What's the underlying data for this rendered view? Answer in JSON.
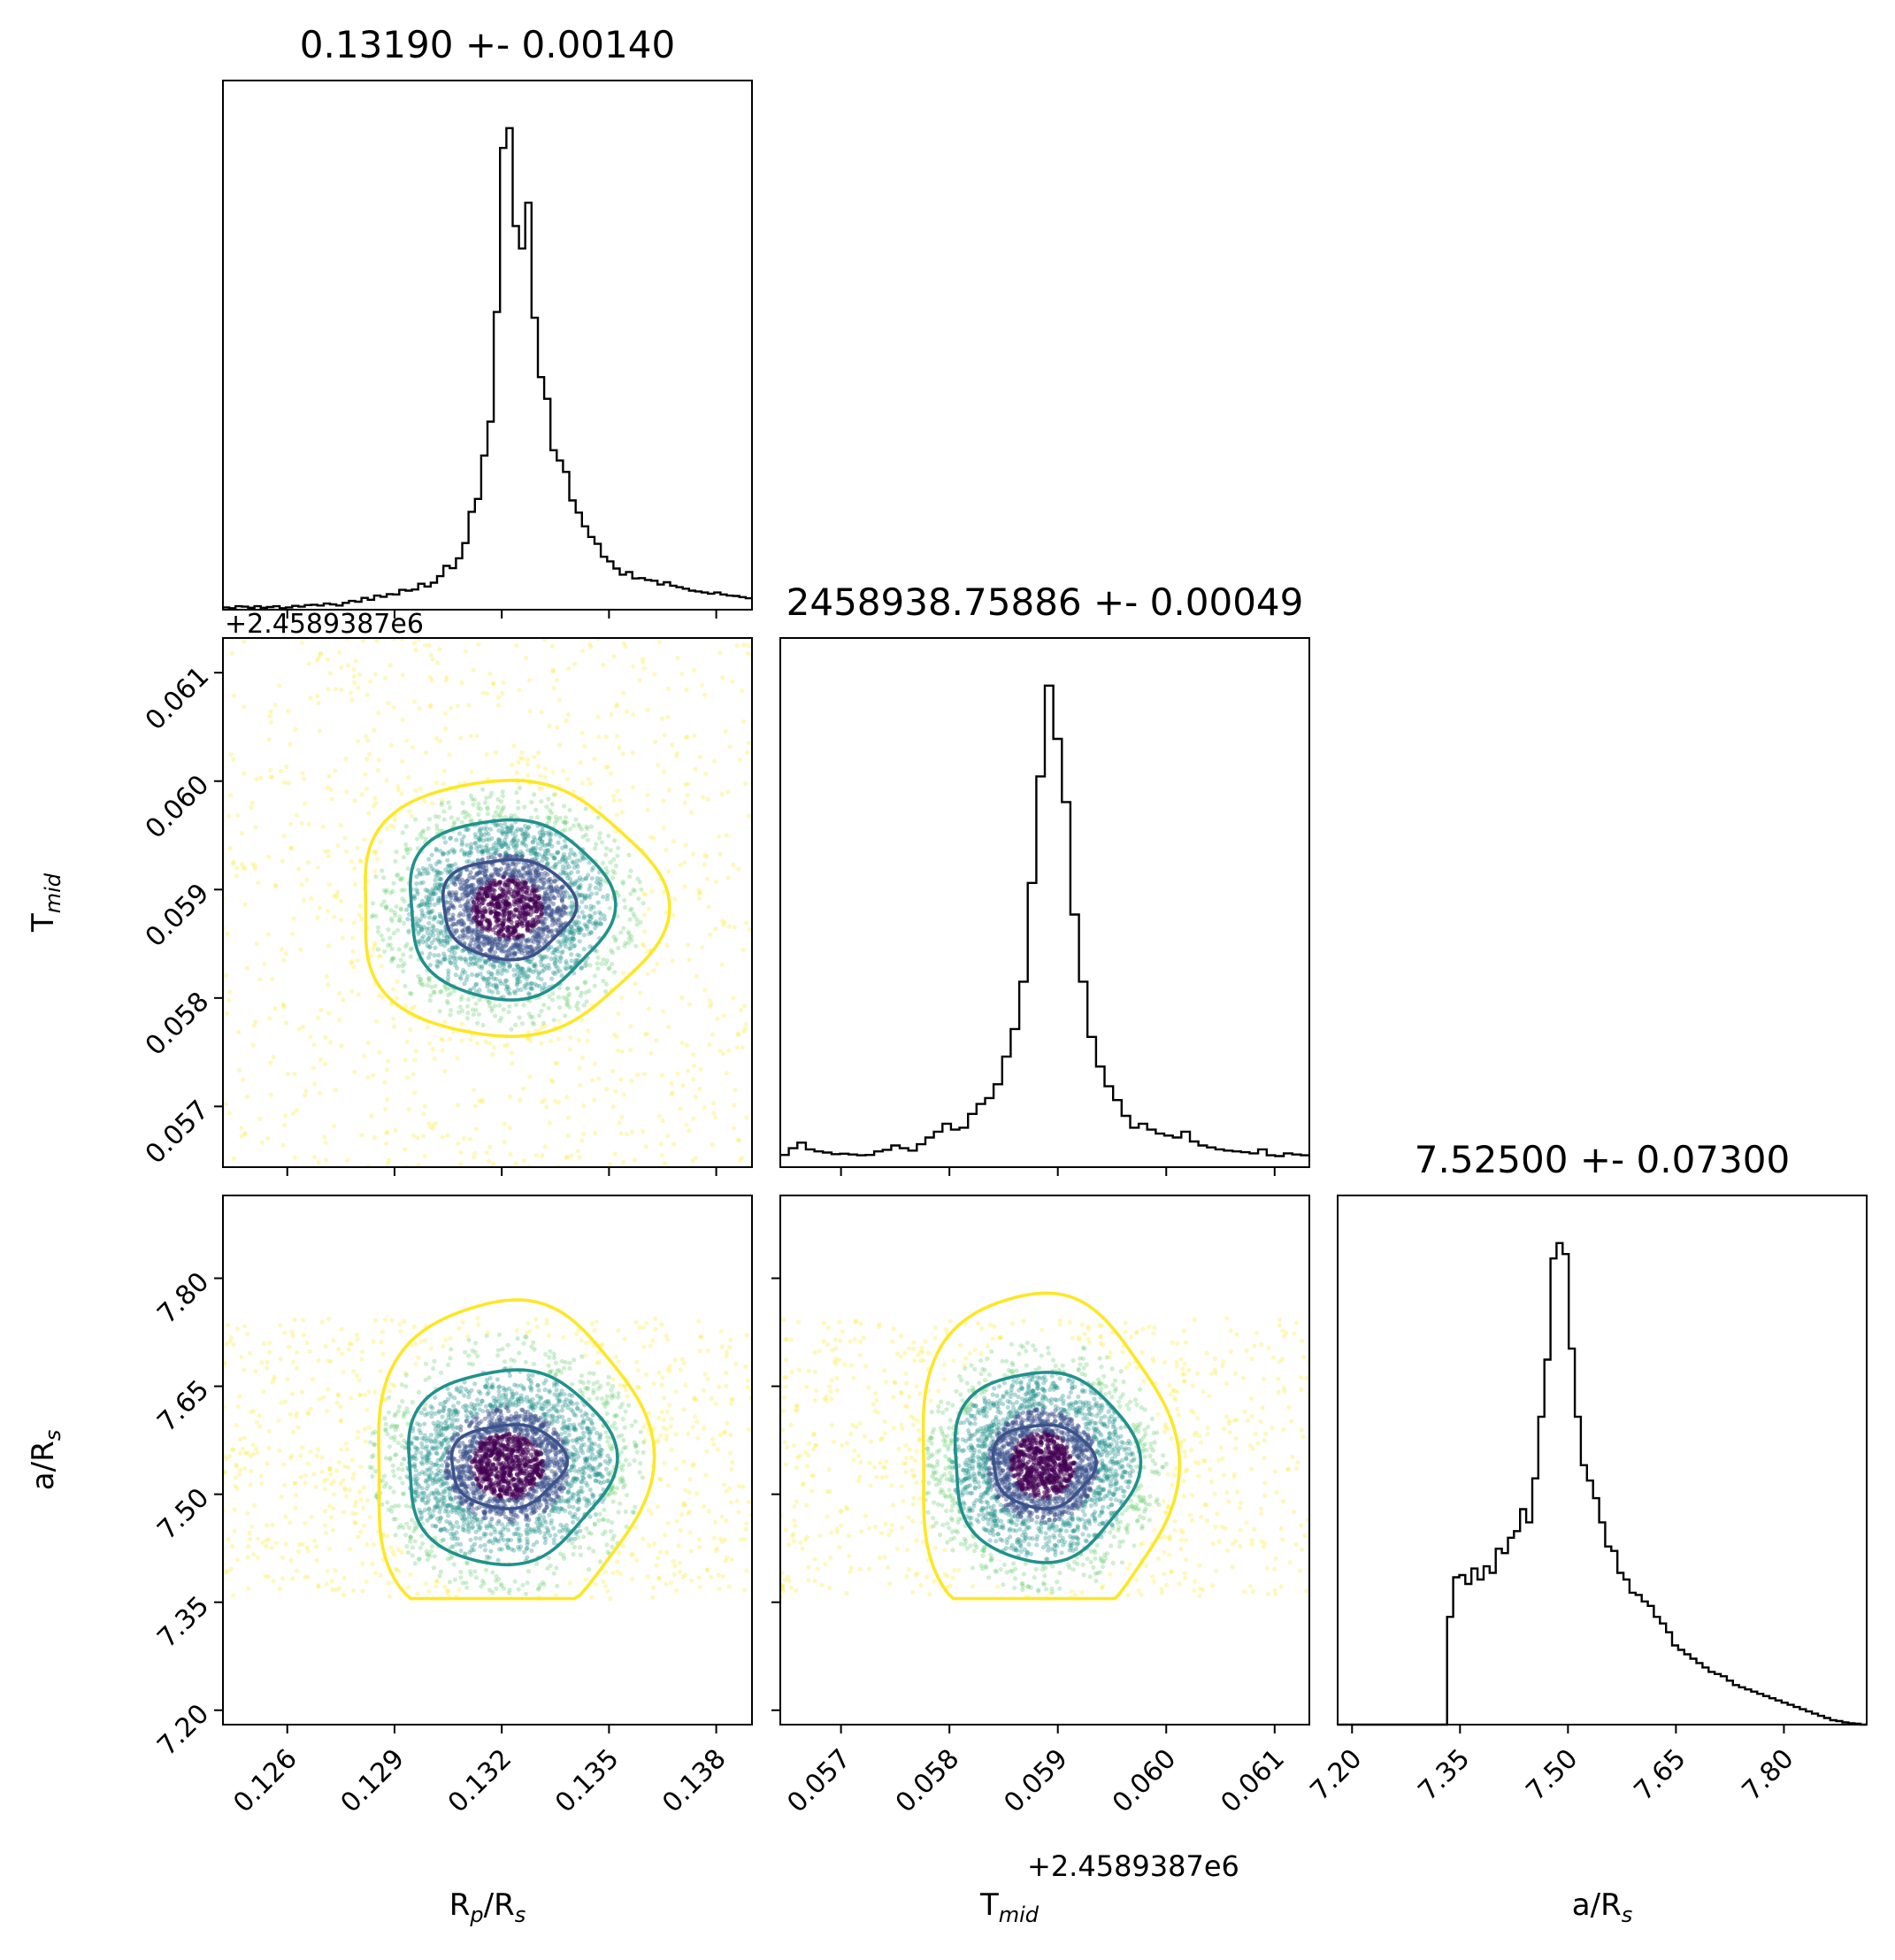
{
  "chart_data": {
    "type": "corner",
    "parameters": [
      {
        "key": "rprs",
        "label_main": "R",
        "label_sub": "p",
        "label_rest": "/R",
        "label_sub2": "s",
        "title": "0.13190 +- 0.00140",
        "range": [
          0.1242,
          0.139
        ],
        "ticks": [
          0.126,
          0.129,
          0.132,
          0.135,
          0.138
        ],
        "tick_labels": [
          "0.126",
          "0.129",
          "0.132",
          "0.135",
          "0.138"
        ],
        "offset_text": ""
      },
      {
        "key": "tmid",
        "label_main": "T",
        "label_sub": "mid",
        "label_rest": "",
        "label_sub2": "",
        "title": "2458938.75886 +- 0.00049",
        "range": [
          0.05644,
          0.06132
        ],
        "ticks": [
          0.057,
          0.058,
          0.059,
          0.06,
          0.061
        ],
        "tick_labels": [
          "0.057",
          "0.058",
          "0.059",
          "0.060",
          "0.061"
        ],
        "offset_text": "+2.4589387e6"
      },
      {
        "key": "ars",
        "label_main": "a/R",
        "label_sub": "s",
        "label_rest": "",
        "label_sub2": "",
        "title": "7.52500 +- 0.07300",
        "range": [
          7.18,
          7.915
        ],
        "ticks": [
          7.2,
          7.35,
          7.5,
          7.65,
          7.8
        ],
        "tick_labels": [
          "7.20",
          "7.35",
          "7.50",
          "7.65",
          "7.80"
        ],
        "offset_text": ""
      }
    ],
    "histograms": {
      "rprs": {
        "bin_range": [
          0.1242,
          0.139
        ],
        "counts": [
          6,
          4,
          9,
          8,
          5,
          9,
          5,
          7,
          9,
          4,
          6,
          10,
          8,
          12,
          13,
          11,
          16,
          14,
          11,
          18,
          23,
          21,
          31,
          26,
          37,
          34,
          41,
          40,
          52,
          50,
          53,
          68,
          61,
          71,
          88,
          115,
          109,
          135,
          175,
          257,
          291,
          405,
          494,
          782,
          1213,
          1265,
          1008,
          949,
          1069,
          767,
          611,
          554,
          419,
          392,
          362,
          287,
          255,
          219,
          191,
          173,
          139,
          127,
          108,
          92,
          99,
          82,
          83,
          78,
          76,
          66,
          72,
          63,
          59,
          55,
          50,
          48,
          45,
          42,
          45,
          40,
          37,
          36,
          33,
          30
        ]
      },
      "tmid": {
        "bin_range": [
          0.05644,
          0.06132
        ],
        "counts": [
          31,
          48,
          62,
          45,
          40,
          37,
          33,
          34,
          32,
          30,
          31,
          40,
          44,
          55,
          48,
          42,
          58,
          75,
          90,
          110,
          95,
          100,
          135,
          160,
          175,
          210,
          280,
          350,
          470,
          720,
          990,
          1220,
          1085,
          925,
          640,
          470,
          330,
          255,
          205,
          170,
          130,
          100,
          110,
          95,
          85,
          80,
          75,
          90,
          65,
          55,
          50,
          45,
          42,
          40,
          38,
          35,
          45,
          30,
          28,
          35,
          32,
          30
        ]
      },
      "ars": {
        "bin_range": [
          7.18,
          7.915
        ],
        "counts": [
          0,
          0,
          0,
          0,
          0,
          0,
          0,
          0,
          0,
          0,
          0,
          0,
          0,
          0,
          0,
          0,
          0,
          0,
          245,
          335,
          340,
          320,
          355,
          330,
          360,
          345,
          400,
          390,
          425,
          440,
          490,
          460,
          560,
          700,
          830,
          1060,
          1095,
          1070,
          855,
          700,
          590,
          555,
          515,
          460,
          405,
          395,
          345,
          330,
          300,
          295,
          280,
          270,
          245,
          230,
          210,
          180,
          170,
          160,
          150,
          140,
          130,
          120,
          115,
          110,
          100,
          90,
          85,
          80,
          75,
          70,
          65,
          60,
          55,
          50,
          45,
          40,
          35,
          30,
          25,
          20,
          15,
          10,
          8,
          5,
          3,
          2,
          0
        ]
      }
    },
    "pairs": [
      {
        "x": "rprs",
        "y": "tmid",
        "center": [
          0.13215,
          0.05883
        ],
        "sigma": [
          0.00155,
          0.00046
        ],
        "corr": 0.0,
        "y_clip": null,
        "contours": [
          {
            "level": 0.5,
            "color": "#3b528b",
            "rx": 0.00185,
            "ry": 0.00046
          },
          {
            "level": 1.0,
            "color": "#21918c",
            "rx": 0.00285,
            "ry": 0.00083
          },
          {
            "level": 1.5,
            "color": "#fde725",
            "rx": 0.00425,
            "ry": 0.00118
          }
        ]
      },
      {
        "x": "rprs",
        "y": "ars",
        "center": [
          0.13215,
          7.54
        ],
        "sigma": [
          0.00155,
          0.06
        ],
        "corr": 0.12,
        "y_clip": [
          7.355,
          7.745
        ],
        "contours": [
          {
            "level": 0.5,
            "color": "#3b528b",
            "rx": 0.0016,
            "ry": 0.058
          },
          {
            "level": 1.0,
            "color": "#21918c",
            "rx": 0.0029,
            "ry": 0.135
          },
          {
            "level": 1.5,
            "color": "#fde725",
            "rx": 0.00385,
            "ry": 0.23
          }
        ]
      },
      {
        "x": "tmid",
        "y": "ars",
        "center": [
          0.05886,
          7.54
        ],
        "sigma": [
          0.00046,
          0.06
        ],
        "corr": 0.0,
        "y_clip": [
          7.355,
          7.745
        ],
        "contours": [
          {
            "level": 0.5,
            "color": "#3b528b",
            "rx": 0.00047,
            "ry": 0.058
          },
          {
            "level": 1.0,
            "color": "#21918c",
            "rx": 0.00085,
            "ry": 0.132
          },
          {
            "level": 1.5,
            "color": "#fde725",
            "rx": 0.00118,
            "ry": 0.24
          }
        ]
      }
    ],
    "scatter_colormap": [
      "#440154",
      "#3b528b",
      "#21918c",
      "#5ec962",
      "#fde725"
    ],
    "grid": false,
    "legend": "none"
  }
}
